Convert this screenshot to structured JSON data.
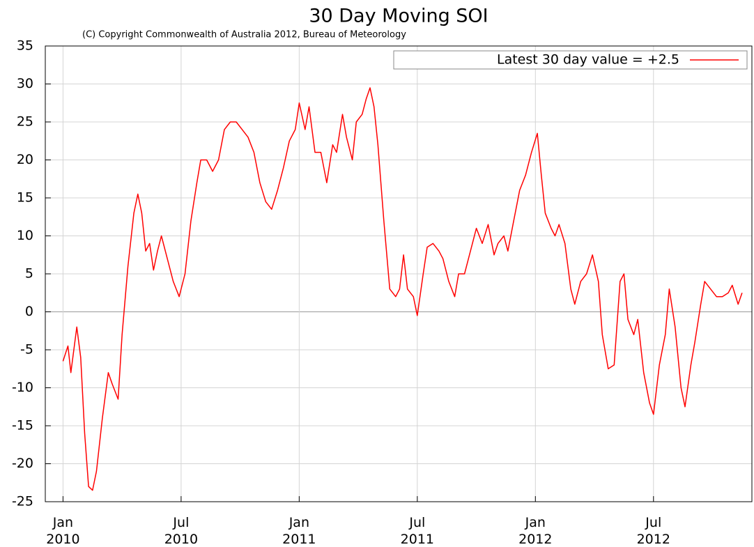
{
  "chart_data": {
    "type": "line",
    "title": "30 Day Moving SOI",
    "subtitle": "(C) Copyright Commonwealth of Australia 2012, Bureau of Meteorology",
    "x": [
      0,
      0.25,
      0.4,
      0.7,
      0.9,
      1.1,
      1.3,
      1.5,
      1.7,
      2.0,
      2.3,
      2.5,
      2.8,
      3.0,
      3.3,
      3.6,
      3.8,
      4.0,
      4.2,
      4.4,
      4.6,
      4.8,
      5.0,
      5.3,
      5.6,
      5.9,
      6.2,
      6.5,
      6.8,
      7.0,
      7.3,
      7.6,
      7.9,
      8.2,
      8.5,
      8.8,
      9.1,
      9.4,
      9.7,
      10.0,
      10.3,
      10.6,
      10.9,
      11.2,
      11.5,
      11.8,
      12.0,
      12.3,
      12.5,
      12.8,
      13.1,
      13.4,
      13.7,
      13.9,
      14.2,
      14.4,
      14.7,
      14.9,
      15.2,
      15.4,
      15.6,
      15.8,
      16.0,
      16.3,
      16.6,
      16.9,
      17.1,
      17.3,
      17.5,
      17.8,
      18.0,
      18.3,
      18.5,
      18.8,
      19.1,
      19.3,
      19.6,
      19.9,
      20.1,
      20.4,
      20.7,
      21.0,
      21.3,
      21.6,
      21.9,
      22.1,
      22.4,
      22.6,
      22.9,
      23.2,
      23.5,
      23.8,
      24.1,
      24.3,
      24.5,
      24.8,
      25.0,
      25.2,
      25.5,
      25.8,
      26.0,
      26.3,
      26.6,
      26.9,
      27.2,
      27.4,
      27.7,
      28.0,
      28.3,
      28.5,
      28.7,
      29.0,
      29.2,
      29.5,
      29.8,
      30.0,
      30.3,
      30.6,
      30.8,
      31.1,
      31.4,
      31.6,
      31.9,
      32.1,
      32.4,
      32.6,
      32.9,
      33.2,
      33.5,
      33.8,
      34.0,
      34.3,
      34.5
    ],
    "series": [
      {
        "name": "Latest 30 day value = +2.5",
        "color": "#ff0000",
        "values": [
          -6.5,
          -4.5,
          -8,
          -2,
          -6,
          -16,
          -23,
          -23.5,
          -21,
          -14,
          -8,
          -9.5,
          -11.5,
          -3,
          6,
          13,
          15.5,
          13,
          8,
          9,
          5.5,
          8,
          10,
          7,
          4,
          2,
          5,
          12,
          17,
          20,
          20,
          18.5,
          20,
          24,
          25,
          25,
          24,
          23,
          21,
          17,
          14.5,
          13.5,
          16,
          19,
          22.5,
          24,
          27.5,
          24,
          27,
          21,
          21,
          17,
          22,
          21,
          26,
          23,
          20,
          25,
          26,
          28,
          29.5,
          27,
          22,
          12,
          3,
          2,
          3,
          7.5,
          3,
          2,
          -0.5,
          5,
          8.5,
          9,
          8,
          7,
          4,
          2,
          5,
          5,
          8,
          11,
          9,
          11.5,
          7.5,
          9,
          10,
          8,
          12,
          16,
          18,
          21,
          23.5,
          18,
          13,
          11,
          10,
          11.5,
          9,
          3,
          1,
          4,
          5,
          7.5,
          4,
          -3,
          -7.5,
          -7,
          4,
          5,
          -1,
          -3,
          -1,
          -8,
          -12,
          -13.5,
          -7,
          -3,
          3,
          -2,
          -10,
          -12.5,
          -7,
          -4,
          1,
          4,
          3,
          2,
          2,
          2.5,
          3.5,
          1,
          2.5
        ]
      }
    ],
    "xlim": [
      -0.9,
      35
    ],
    "xticks": [
      {
        "value": 0,
        "label": "Jan 2010"
      },
      {
        "value": 6,
        "label": "Jul 2010"
      },
      {
        "value": 12,
        "label": "Jan 2011"
      },
      {
        "value": 18,
        "label": "Jul 2011"
      },
      {
        "value": 24,
        "label": "Jan 2012"
      },
      {
        "value": 30,
        "label": "Jul 2012"
      }
    ],
    "ylim": [
      -25,
      35
    ],
    "yticks": [
      -25,
      -20,
      -15,
      -10,
      -5,
      0,
      5,
      10,
      15,
      20,
      25,
      30,
      35
    ],
    "grid": true,
    "legend": "upper right"
  }
}
